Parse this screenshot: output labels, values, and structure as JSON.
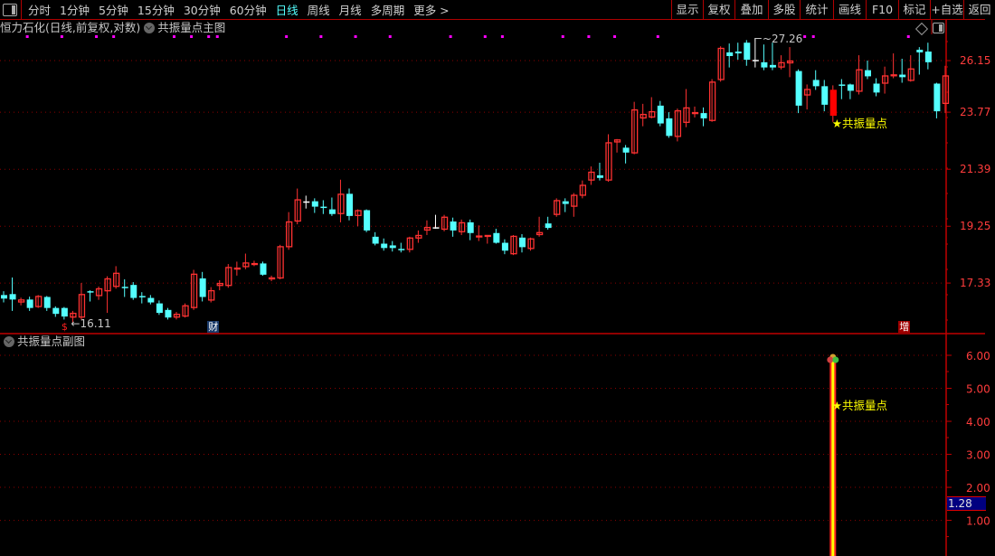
{
  "toolbar": {
    "periods": [
      {
        "label": "分时",
        "active": false
      },
      {
        "label": "1分钟",
        "active": false
      },
      {
        "label": "5分钟",
        "active": false
      },
      {
        "label": "15分钟",
        "active": false
      },
      {
        "label": "30分钟",
        "active": false
      },
      {
        "label": "60分钟",
        "active": false
      },
      {
        "label": "日线",
        "active": true
      },
      {
        "label": "周线",
        "active": false
      },
      {
        "label": "月线",
        "active": false
      },
      {
        "label": "多周期",
        "active": false
      },
      {
        "label": "更多 >",
        "active": false
      }
    ],
    "buttons": [
      "显示",
      "复权",
      "叠加",
      "多股",
      "统计",
      "画线",
      "F10",
      "标记",
      "+自选",
      "返回"
    ]
  },
  "main_panel": {
    "stock_title": "恒力石化(日线,前复权,对数)",
    "indicator_name": "共振量点主图",
    "signal_label": "★共振量点",
    "high_note": "27.26",
    "low_note": "16.11",
    "event_markers": [
      {
        "text": "$",
        "bar": 7,
        "color": "#ff2020",
        "bg": "transparent"
      },
      {
        "text": "财",
        "bar": 24,
        "color": "#ffffff",
        "bg": "#1a3a6a"
      },
      {
        "text": "增",
        "bar": 104,
        "color": "#ffffff",
        "bg": "#a00000"
      }
    ]
  },
  "sub_panel": {
    "indicator_name": "共振量点副图",
    "signal_label": "★共振量点",
    "current_value": "1.28"
  },
  "colors": {
    "up": "#ff3232",
    "down": "#54ffff",
    "flat": "#ffffff",
    "grid": "#8b0000",
    "axis": "#c00000",
    "axis_text": "#ff3c3c",
    "signal": "#ffff00",
    "top_marker": "#ff00ff",
    "menu_active": "#54ffff"
  },
  "chart_data": [
    {
      "type": "candlestick",
      "scale": "log",
      "ylim": [
        15.81,
        27.45
      ],
      "yticks": [
        "26.15",
        "23.77",
        "21.39",
        "19.25",
        "17.33"
      ],
      "grid": true,
      "highlight_bar": 96,
      "top_marker_bars": [
        3,
        7,
        11,
        13,
        20,
        22,
        24,
        25,
        33,
        37,
        41,
        45,
        52,
        56,
        58,
        65,
        68,
        71,
        76,
        93,
        94,
        105
      ],
      "ohlc": [
        [
          16.95,
          17.07,
          16.72,
          16.84
        ],
        [
          16.98,
          17.51,
          16.46,
          16.81
        ],
        [
          16.72,
          16.87,
          16.63,
          16.81
        ],
        [
          16.81,
          16.9,
          16.46,
          16.55
        ],
        [
          16.58,
          16.95,
          16.55,
          16.92
        ],
        [
          16.89,
          16.92,
          16.46,
          16.55
        ],
        [
          16.55,
          16.6,
          16.28,
          16.37
        ],
        [
          16.55,
          16.58,
          16.2,
          16.29
        ],
        [
          16.26,
          16.46,
          16.11,
          16.4
        ],
        [
          16.26,
          17.33,
          16.2,
          16.98
        ],
        [
          17.07,
          17.1,
          16.75,
          17.06
        ],
        [
          16.92,
          17.22,
          16.8,
          17.16
        ],
        [
          17.07,
          17.55,
          16.4,
          17.48
        ],
        [
          17.21,
          17.88,
          17.15,
          17.66
        ],
        [
          17.21,
          17.45,
          16.89,
          17.2
        ],
        [
          17.27,
          17.36,
          16.8,
          16.86
        ],
        [
          16.92,
          17.04,
          16.69,
          16.91
        ],
        [
          16.86,
          16.95,
          16.66,
          16.72
        ],
        [
          16.69,
          16.78,
          16.34,
          16.4
        ],
        [
          16.49,
          16.55,
          16.2,
          16.26
        ],
        [
          16.26,
          16.43,
          16.2,
          16.37
        ],
        [
          16.29,
          16.69,
          16.26,
          16.63
        ],
        [
          16.55,
          17.76,
          16.49,
          17.63
        ],
        [
          17.48,
          17.69,
          16.75,
          16.89
        ],
        [
          16.78,
          17.2,
          16.72,
          17.1
        ],
        [
          17.24,
          17.42,
          17.1,
          17.33
        ],
        [
          17.24,
          17.95,
          17.18,
          17.85
        ],
        [
          17.82,
          18.03,
          17.57,
          17.83
        ],
        [
          17.85,
          18.3,
          17.78,
          18.0
        ],
        [
          17.97,
          18.06,
          17.88,
          17.98
        ],
        [
          17.97,
          18.03,
          17.57,
          17.6
        ],
        [
          17.45,
          17.57,
          17.39,
          17.51
        ],
        [
          17.48,
          18.6,
          17.45,
          18.55
        ],
        [
          18.52,
          19.76,
          18.43,
          19.42
        ],
        [
          19.42,
          20.64,
          19.32,
          20.23
        ],
        [
          20.13,
          20.37,
          19.89,
          20.13
        ],
        [
          20.16,
          20.27,
          19.73,
          19.96
        ],
        [
          19.96,
          20.2,
          19.69,
          19.95
        ],
        [
          19.86,
          20.3,
          19.62,
          19.69
        ],
        [
          19.69,
          20.98,
          19.39,
          20.44
        ],
        [
          20.44,
          20.64,
          19.46,
          19.62
        ],
        [
          19.62,
          19.86,
          19.25,
          19.83
        ],
        [
          19.83,
          19.86,
          19.04,
          19.1
        ],
        [
          18.88,
          19.04,
          18.58,
          18.64
        ],
        [
          18.64,
          18.82,
          18.4,
          18.49
        ],
        [
          18.58,
          18.73,
          18.37,
          18.49
        ],
        [
          18.46,
          18.67,
          18.34,
          18.43
        ],
        [
          18.43,
          18.88,
          18.34,
          18.85
        ],
        [
          18.82,
          19.1,
          18.67,
          18.94
        ],
        [
          19.1,
          19.46,
          18.94,
          19.22
        ],
        [
          19.19,
          19.66,
          19.16,
          19.19
        ],
        [
          19.13,
          19.66,
          19.07,
          19.59
        ],
        [
          19.42,
          19.56,
          18.88,
          19.1
        ],
        [
          19.04,
          19.49,
          18.94,
          19.39
        ],
        [
          19.39,
          19.49,
          18.76,
          19.01
        ],
        [
          18.91,
          19.28,
          18.73,
          18.92
        ],
        [
          18.88,
          18.94,
          18.64,
          18.94
        ],
        [
          19.01,
          19.16,
          18.64,
          18.67
        ],
        [
          18.67,
          18.79,
          18.28,
          18.4
        ],
        [
          18.28,
          18.94,
          18.25,
          18.91
        ],
        [
          18.85,
          18.97,
          18.34,
          18.52
        ],
        [
          18.46,
          18.85,
          18.4,
          18.82
        ],
        [
          18.94,
          19.59,
          18.88,
          19.04
        ],
        [
          19.35,
          19.59,
          19.13,
          19.19
        ],
        [
          19.66,
          20.27,
          19.59,
          20.2
        ],
        [
          20.16,
          20.27,
          19.76,
          20.06
        ],
        [
          19.96,
          20.47,
          19.59,
          20.4
        ],
        [
          20.37,
          20.95,
          20.27,
          20.78
        ],
        [
          20.95,
          21.5,
          20.78,
          21.29
        ],
        [
          21.15,
          21.65,
          20.95,
          21.05
        ],
        [
          20.95,
          22.82,
          20.9,
          22.48
        ],
        [
          22.48,
          22.62,
          22.06,
          22.6
        ],
        [
          22.26,
          22.37,
          21.62,
          22.06
        ],
        [
          22.03,
          24.23,
          21.99,
          23.89
        ],
        [
          23.5,
          24.14,
          23.16,
          23.69
        ],
        [
          23.54,
          24.44,
          23.5,
          23.81
        ],
        [
          24.06,
          24.27,
          23.16,
          23.28
        ],
        [
          23.5,
          23.77,
          22.67,
          22.75
        ],
        [
          22.71,
          23.93,
          22.52,
          23.85
        ],
        [
          23.31,
          24.81,
          23.12,
          23.98
        ],
        [
          23.69,
          24.02,
          23.54,
          23.77
        ],
        [
          23.73,
          23.98,
          23.16,
          23.5
        ],
        [
          23.39,
          25.27,
          23.35,
          25.15
        ],
        [
          25.23,
          26.85,
          25.15,
          26.77
        ],
        [
          26.55,
          26.99,
          25.82,
          26.37
        ],
        [
          26.59,
          27.03,
          26.19,
          26.5
        ],
        [
          27.03,
          27.16,
          25.9,
          26.19
        ],
        [
          26.15,
          27.26,
          25.82,
          26.15
        ],
        [
          26.07,
          26.94,
          25.69,
          25.82
        ],
        [
          25.94,
          27.03,
          25.69,
          25.82
        ],
        [
          25.82,
          26.41,
          25.73,
          26.07
        ],
        [
          26.02,
          26.81,
          25.36,
          26.15
        ],
        [
          25.65,
          25.73,
          23.73,
          24.06
        ],
        [
          24.52,
          25.02,
          23.89,
          24.81
        ],
        [
          25.23,
          25.69,
          24.77,
          24.94
        ],
        [
          24.94,
          25.23,
          23.81,
          24.1
        ],
        [
          23.62,
          24.98,
          23.35,
          24.77
        ],
        [
          25.02,
          25.27,
          24.35,
          25.01
        ],
        [
          25.02,
          25.06,
          24.35,
          24.73
        ],
        [
          24.69,
          26.41,
          24.56,
          25.73
        ],
        [
          25.69,
          26.15,
          25.27,
          25.4
        ],
        [
          25.06,
          25.31,
          24.48,
          24.65
        ],
        [
          25.06,
          25.86,
          24.6,
          25.44
        ],
        [
          25.48,
          26.5,
          25.31,
          25.49
        ],
        [
          25.48,
          26.24,
          25.1,
          25.36
        ],
        [
          25.19,
          26.41,
          25.15,
          25.77
        ],
        [
          26.68,
          26.81,
          25.48,
          26.55
        ],
        [
          26.59,
          27.03,
          25.73,
          26.07
        ],
        [
          25.06,
          25.1,
          23.5,
          23.81
        ],
        [
          24.14,
          25.9,
          23.73,
          25.44
        ]
      ]
    },
    {
      "type": "bar",
      "ylim": [
        -0.08,
        6.63
      ],
      "yticks": [
        "6.00",
        "5.00",
        "4.00",
        "3.00",
        "2.00",
        "1.00"
      ],
      "grid": true,
      "signal_bars": [
        {
          "bar": 96,
          "value": 6
        }
      ]
    }
  ]
}
